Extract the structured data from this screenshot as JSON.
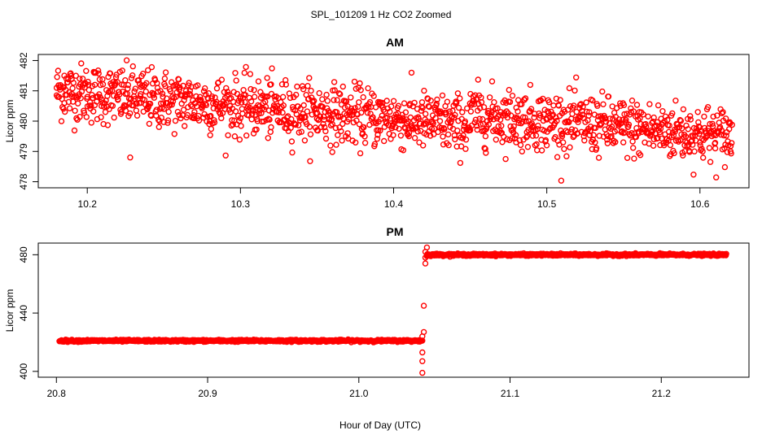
{
  "chart_data": [
    {
      "type": "scatter",
      "title": "AM",
      "ylabel": "Licor ppm",
      "xlim": [
        10.168,
        10.632
      ],
      "ylim": [
        477.8,
        482.2
      ],
      "xticks": [
        "10.2",
        "10.3",
        "10.4",
        "10.5",
        "10.6"
      ],
      "yticks": [
        "478",
        "479",
        "480",
        "481",
        "482"
      ],
      "series": [
        {
          "marker": "open-circle",
          "color": "#ff0000",
          "description_note": "1 Hz CO2 readings, values drifting from ~481 to ~479 ppm",
          "x": [
            10.18,
            10.185,
            10.19,
            10.195,
            10.2,
            10.205,
            10.21,
            10.215,
            10.22,
            10.225,
            10.228,
            10.235,
            10.24,
            10.25,
            10.26,
            10.27,
            10.28,
            10.29,
            10.3,
            10.31,
            10.32,
            10.33,
            10.34,
            10.35,
            10.36,
            10.37,
            10.38,
            10.39,
            10.4,
            10.41,
            10.42,
            10.43,
            10.44,
            10.45,
            10.46,
            10.47,
            10.48,
            10.49,
            10.5,
            10.51,
            10.52,
            10.53,
            10.54,
            10.55,
            10.56,
            10.57,
            10.58,
            10.59,
            10.6,
            10.61,
            10.62
          ],
          "y": [
            481.1,
            481.5,
            480.9,
            481.4,
            480.8,
            481.2,
            480.6,
            481.0,
            480.7,
            480.9,
            478.8,
            480.6,
            480.5,
            480.4,
            480.2,
            480.3,
            480.0,
            480.4,
            480.1,
            480.2,
            479.8,
            479.9,
            480.1,
            479.7,
            479.9,
            479.6,
            479.8,
            479.7,
            479.9,
            479.5,
            479.6,
            479.8,
            479.4,
            479.7,
            479.5,
            479.6,
            479.3,
            479.7,
            479.2,
            479.5,
            479.6,
            479.4,
            479.5,
            479.3,
            479.6,
            479.4,
            479.5,
            479.2,
            479.3,
            479.1,
            479.0
          ],
          "band_y_low": [
            480.3,
            480.4,
            480.2,
            480.1,
            480.0,
            479.8,
            479.6,
            479.3,
            479.1,
            478.9
          ],
          "band_y_high": [
            481.6,
            481.4,
            481.1,
            480.9,
            480.6,
            480.4,
            480.2,
            480.1,
            480.0,
            479.9
          ]
        }
      ]
    },
    {
      "type": "scatter",
      "title": "PM",
      "ylabel": "Licor ppm",
      "xlim": [
        20.788,
        21.258
      ],
      "ylim": [
        396,
        488
      ],
      "xticks": [
        "20.8",
        "20.9",
        "21.0",
        "21.1",
        "21.2"
      ],
      "yticks": [
        "400",
        "440",
        "480"
      ],
      "series": [
        {
          "marker": "open-circle",
          "color": "#ff0000",
          "segments": [
            {
              "x_start": 20.802,
              "x_end": 21.042,
              "y": 421
            },
            {
              "x_start": 21.045,
              "x_end": 21.243,
              "y": 480
            }
          ],
          "transition_x": [
            21.042,
            21.042,
            21.042,
            21.042,
            21.043,
            21.043,
            21.044,
            21.044,
            21.044,
            21.045,
            21.045
          ],
          "transition_y": [
            399,
            407,
            413,
            424,
            427,
            445,
            474,
            478,
            482,
            485,
            479
          ]
        }
      ]
    }
  ],
  "figure": {
    "title": "SPL_101209  1 Hz CO2 Zoomed",
    "xlabel": "Hour of Day (UTC)"
  }
}
